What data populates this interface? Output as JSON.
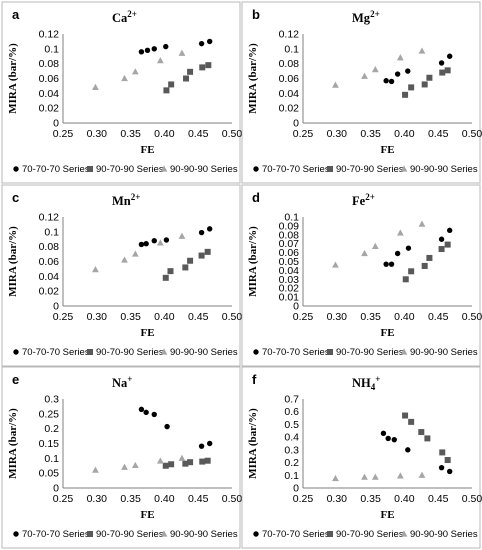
{
  "chart_data": [
    {
      "type": "scatter",
      "letter": "a",
      "title_base": "Ca",
      "title_sup": "2+",
      "xlabel": "FE",
      "ylabel": "MIRA (bar/%)",
      "xlim": [
        0.25,
        0.5
      ],
      "ylim": [
        0,
        0.12
      ],
      "xticks": [
        "0.25",
        "0.30",
        "0.35",
        "0.40",
        "0.45",
        "0.50"
      ],
      "yticks": [
        "0",
        "0.02",
        "0.04",
        "0.06",
        "0.08",
        "0.1",
        "0.12"
      ],
      "legend_position": "bottom",
      "series": [
        {
          "name": "70-70-70 Series",
          "marker": "circle",
          "color": "#000000",
          "points": [
            [
              0.366,
              0.096
            ],
            [
              0.375,
              0.098
            ],
            [
              0.385,
              0.1
            ],
            [
              0.402,
              0.103
            ],
            [
              0.455,
              0.107
            ],
            [
              0.467,
              0.11
            ]
          ]
        },
        {
          "name": "90-70-90 Series",
          "marker": "square",
          "color": "#595959",
          "points": [
            [
              0.403,
              0.044
            ],
            [
              0.41,
              0.052
            ],
            [
              0.432,
              0.06
            ],
            [
              0.438,
              0.069
            ],
            [
              0.456,
              0.075
            ],
            [
              0.465,
              0.078
            ]
          ]
        },
        {
          "name": "90-90-90 Series",
          "marker": "triangle",
          "color": "#a6a6a6",
          "points": [
            [
              0.298,
              0.048
            ],
            [
              0.341,
              0.06
            ],
            [
              0.357,
              0.069
            ],
            [
              0.394,
              0.084
            ],
            [
              0.426,
              0.094
            ]
          ]
        }
      ]
    },
    {
      "type": "scatter",
      "letter": "b",
      "title_base": "Mg",
      "title_sup": "2+",
      "xlabel": "FE",
      "ylabel": "MIRA (bar/%)",
      "xlim": [
        0.25,
        0.5
      ],
      "ylim": [
        0,
        0.12
      ],
      "xticks": [
        "0.25",
        "0.30",
        "0.35",
        "0.40",
        "0.45",
        "0.50"
      ],
      "yticks": [
        "0",
        "0.02",
        "0.04",
        "0.06",
        "0.08",
        "0.1",
        "0.12"
      ],
      "legend_position": "bottom",
      "series": [
        {
          "name": "70-70-70 Series",
          "marker": "circle",
          "color": "#000000",
          "points": [
            [
              0.373,
              0.057
            ],
            [
              0.381,
              0.056
            ],
            [
              0.39,
              0.066
            ],
            [
              0.405,
              0.07
            ],
            [
              0.455,
              0.081
            ],
            [
              0.467,
              0.09
            ]
          ]
        },
        {
          "name": "90-70-90 Series",
          "marker": "square",
          "color": "#595959",
          "points": [
            [
              0.401,
              0.038
            ],
            [
              0.41,
              0.048
            ],
            [
              0.43,
              0.052
            ],
            [
              0.437,
              0.061
            ],
            [
              0.456,
              0.068
            ],
            [
              0.464,
              0.071
            ]
          ]
        },
        {
          "name": "90-90-90 Series",
          "marker": "triangle",
          "color": "#a6a6a6",
          "points": [
            [
              0.298,
              0.051
            ],
            [
              0.341,
              0.063
            ],
            [
              0.357,
              0.072
            ],
            [
              0.394,
              0.088
            ],
            [
              0.426,
              0.097
            ]
          ]
        }
      ]
    },
    {
      "type": "scatter",
      "letter": "c",
      "title_base": "Mn",
      "title_sup": "2+",
      "xlabel": "FE",
      "ylabel": "MIRA (bar/%)",
      "xlim": [
        0.25,
        0.5
      ],
      "ylim": [
        0,
        0.12
      ],
      "xticks": [
        "0.25",
        "0.30",
        "0.35",
        "0.40",
        "0.45",
        "0.50"
      ],
      "yticks": [
        "0",
        "0.02",
        "0.04",
        "0.06",
        "0.08",
        "0.1",
        "0.12"
      ],
      "legend_position": "bottom",
      "series": [
        {
          "name": "70-70-70 Series",
          "marker": "circle",
          "color": "#000000",
          "points": [
            [
              0.366,
              0.083
            ],
            [
              0.373,
              0.084
            ],
            [
              0.385,
              0.088
            ],
            [
              0.403,
              0.089
            ],
            [
              0.455,
              0.099
            ],
            [
              0.467,
              0.104
            ]
          ]
        },
        {
          "name": "90-70-90 Series",
          "marker": "square",
          "color": "#595959",
          "points": [
            [
              0.402,
              0.038
            ],
            [
              0.409,
              0.047
            ],
            [
              0.431,
              0.052
            ],
            [
              0.438,
              0.061
            ],
            [
              0.455,
              0.068
            ],
            [
              0.464,
              0.073
            ]
          ]
        },
        {
          "name": "90-90-90 Series",
          "marker": "triangle",
          "color": "#a6a6a6",
          "points": [
            [
              0.298,
              0.049
            ],
            [
              0.341,
              0.062
            ],
            [
              0.357,
              0.07
            ],
            [
              0.394,
              0.085
            ],
            [
              0.426,
              0.094
            ]
          ]
        }
      ]
    },
    {
      "type": "scatter",
      "letter": "d",
      "title_base": "Fe",
      "title_sup": "2+",
      "xlabel": "FE",
      "ylabel": "MIRA (bar/%)",
      "xlim": [
        0.25,
        0.5
      ],
      "ylim": [
        0,
        0.1
      ],
      "xticks": [
        "0.25",
        "0.30",
        "0.35",
        "0.40",
        "0.45",
        "0.50"
      ],
      "yticks": [
        "0",
        "0.01",
        "0.02",
        "0.03",
        "0.04",
        "0.05",
        "0.06",
        "0.07",
        "0.08",
        "0.09",
        "0.1"
      ],
      "legend_position": "bottom",
      "series": [
        {
          "name": "70-70-70 Series",
          "marker": "circle",
          "color": "#000000",
          "points": [
            [
              0.373,
              0.047
            ],
            [
              0.381,
              0.047
            ],
            [
              0.39,
              0.059
            ],
            [
              0.406,
              0.065
            ],
            [
              0.455,
              0.075
            ],
            [
              0.467,
              0.085
            ]
          ]
        },
        {
          "name": "90-70-90 Series",
          "marker": "square",
          "color": "#595959",
          "points": [
            [
              0.402,
              0.03
            ],
            [
              0.41,
              0.039
            ],
            [
              0.43,
              0.045
            ],
            [
              0.437,
              0.054
            ],
            [
              0.455,
              0.064
            ],
            [
              0.464,
              0.069
            ]
          ]
        },
        {
          "name": "90-90-90 Series",
          "marker": "triangle",
          "color": "#a6a6a6",
          "points": [
            [
              0.298,
              0.046
            ],
            [
              0.341,
              0.059
            ],
            [
              0.357,
              0.067
            ],
            [
              0.394,
              0.082
            ],
            [
              0.426,
              0.092
            ]
          ]
        }
      ]
    },
    {
      "type": "scatter",
      "letter": "e",
      "title_base": "Na",
      "title_sup": "+",
      "xlabel": "FE",
      "ylabel": "MIRA (bar/%)",
      "xlim": [
        0.25,
        0.5
      ],
      "ylim": [
        0,
        0.3
      ],
      "xticks": [
        "0.25",
        "0.30",
        "0.35",
        "0.40",
        "0.45",
        "0.50"
      ],
      "yticks": [
        "0",
        "0.05",
        "0.1",
        "0.15",
        "0.2",
        "0.25",
        "0.3"
      ],
      "legend_position": "bottom",
      "series": [
        {
          "name": "70-70-70 Series",
          "marker": "circle",
          "color": "#000000",
          "points": [
            [
              0.366,
              0.265
            ],
            [
              0.373,
              0.255
            ],
            [
              0.385,
              0.248
            ],
            [
              0.404,
              0.207
            ],
            [
              0.455,
              0.141
            ],
            [
              0.467,
              0.15
            ]
          ]
        },
        {
          "name": "90-70-90 Series",
          "marker": "square",
          "color": "#595959",
          "points": [
            [
              0.402,
              0.075
            ],
            [
              0.41,
              0.08
            ],
            [
              0.431,
              0.082
            ],
            [
              0.438,
              0.087
            ],
            [
              0.456,
              0.089
            ],
            [
              0.464,
              0.092
            ]
          ]
        },
        {
          "name": "90-90-90 Series",
          "marker": "triangle",
          "color": "#a6a6a6",
          "points": [
            [
              0.298,
              0.06
            ],
            [
              0.341,
              0.07
            ],
            [
              0.357,
              0.076
            ],
            [
              0.394,
              0.091
            ],
            [
              0.426,
              0.1
            ]
          ]
        }
      ]
    },
    {
      "type": "scatter",
      "letter": "f",
      "title_base": "NH",
      "title_sub": "4",
      "title_sup": "+",
      "xlabel": "FE",
      "ylabel": "MIRA (bar/%)",
      "xlim": [
        0.25,
        0.5
      ],
      "ylim": [
        0,
        0.7
      ],
      "xticks": [
        "0.25",
        "0.30",
        "0.35",
        "0.40",
        "0.45",
        "0.50"
      ],
      "yticks": [
        "0",
        "0.1",
        "0.2",
        "0.3",
        "0.4",
        "0.5",
        "0.6",
        "0.7"
      ],
      "legend_position": "bottom",
      "series": [
        {
          "name": "70-70-70 Series",
          "marker": "circle",
          "color": "#000000",
          "points": [
            [
              0.369,
              0.43
            ],
            [
              0.376,
              0.39
            ],
            [
              0.385,
              0.38
            ],
            [
              0.405,
              0.3
            ],
            [
              0.455,
              0.16
            ],
            [
              0.467,
              0.13
            ]
          ]
        },
        {
          "name": "90-70-90 Series",
          "marker": "square",
          "color": "#595959",
          "points": [
            [
              0.401,
              0.57
            ],
            [
              0.41,
              0.52
            ],
            [
              0.425,
              0.44
            ],
            [
              0.434,
              0.39
            ],
            [
              0.456,
              0.28
            ],
            [
              0.464,
              0.22
            ]
          ]
        },
        {
          "name": "90-90-90 Series",
          "marker": "triangle",
          "color": "#a6a6a6",
          "points": [
            [
              0.298,
              0.075
            ],
            [
              0.341,
              0.085
            ],
            [
              0.357,
              0.085
            ],
            [
              0.394,
              0.095
            ],
            [
              0.426,
              0.1
            ]
          ]
        }
      ]
    }
  ]
}
